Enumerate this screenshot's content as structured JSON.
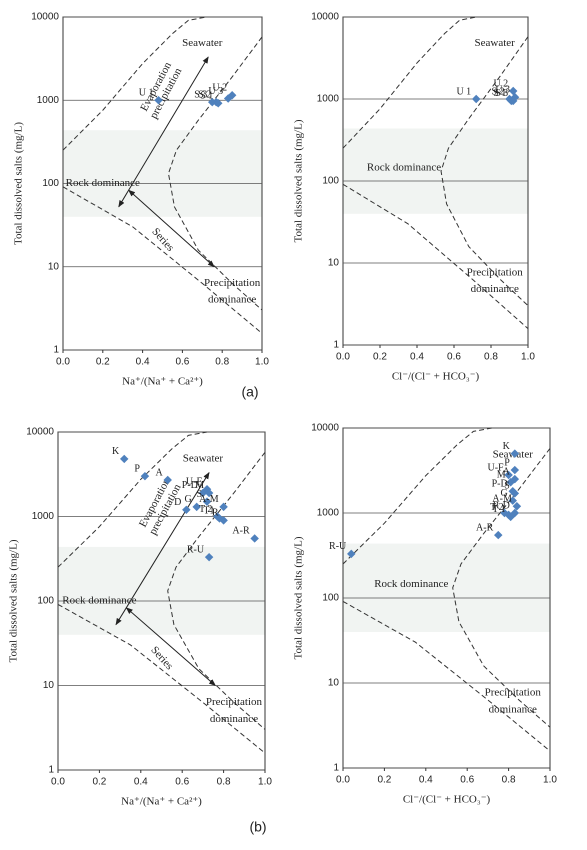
{
  "panel_labels": [
    "(a)",
    "(b)"
  ],
  "chart_data": [
    {
      "type": "scatter",
      "xlabel": "Na⁺/(Na⁺ + Ca²⁺)",
      "ylabel": "Total dissolved salts (mg/L)",
      "log_y": true,
      "grid": true,
      "color": "#4f81bd",
      "xlim": [
        0,
        1
      ],
      "ylim": [
        1,
        10000
      ],
      "xticks": [
        {
          "value": 0,
          "label": "0.0"
        },
        0.2,
        0.4,
        0.6,
        0.8,
        {
          "value": 1,
          "label": "1.0"
        }
      ],
      "yticks": [
        1,
        10,
        100,
        1000,
        10000
      ],
      "annotations": [
        "Seawater",
        "Evaporation",
        "precipitation",
        "Rock dominance",
        "Series",
        "Precipitation",
        "dominance"
      ],
      "labels": [
        "U 1",
        "S 2",
        "S 3",
        "S 1",
        "U 3",
        "U 2"
      ],
      "x": [
        0.48,
        0.77,
        0.75,
        0.78,
        0.83,
        0.85
      ],
      "values": [
        1000,
        950,
        950,
        920,
        1050,
        1150
      ]
    },
    {
      "type": "scatter",
      "xlabel": "Cl⁻/(Cl⁻ + HCO₃⁻)",
      "ylabel": "Total dissolved salts (mg/L)",
      "log_y": true,
      "grid": true,
      "color": "#4f81bd",
      "xlim": [
        0,
        1
      ],
      "ylim": [
        1,
        10000
      ],
      "xticks": [
        {
          "value": 0,
          "label": "0.0"
        },
        0.2,
        0.4,
        0.6,
        0.8,
        {
          "value": 1,
          "label": "1.0"
        }
      ],
      "yticks": [
        1,
        10,
        100,
        1000,
        10000
      ],
      "annotations": [
        "Seawater",
        "Rock dominance",
        "Precipitation",
        "dominance"
      ],
      "labels": [
        "U 1",
        "S 2",
        "U 2",
        "U 3",
        "S 1",
        "S 3"
      ],
      "x": [
        0.72,
        0.9,
        0.92,
        0.93,
        0.91,
        0.92
      ],
      "values": [
        1000,
        1000,
        1250,
        1050,
        950,
        950
      ]
    },
    {
      "type": "scatter",
      "xlabel": "Na⁺/(Na⁺ + Ca²⁺)",
      "ylabel": "Total dissolved salts (mg/L)",
      "log_y": true,
      "grid": true,
      "color": "#4f81bd",
      "xlim": [
        0,
        1
      ],
      "ylim": [
        1,
        10000
      ],
      "xticks": [
        {
          "value": 0,
          "label": "0.0"
        },
        0.2,
        0.4,
        0.6,
        0.8,
        {
          "value": 1,
          "label": "1.0"
        }
      ],
      "yticks": [
        1,
        10,
        100,
        1000,
        10000
      ],
      "annotations": [
        "Seawater",
        "Evaporation",
        "precipitation",
        "Rock dominance",
        "Series",
        "Precipitation",
        "dominance"
      ],
      "labels": [
        "K",
        "P",
        "A",
        "U-F",
        "P-D",
        "M",
        "S",
        "G",
        "D",
        "A-M",
        "T 2",
        "T1",
        "R",
        "A-R",
        "R-U"
      ],
      "x": [
        0.32,
        0.42,
        0.53,
        0.72,
        0.7,
        0.73,
        0.72,
        0.67,
        0.62,
        0.8,
        0.77,
        0.78,
        0.8,
        0.95,
        0.73
      ],
      "values": [
        4800,
        3000,
        2700,
        2100,
        1900,
        1900,
        1500,
        1300,
        1200,
        1300,
        1000,
        950,
        900,
        550,
        330
      ]
    },
    {
      "type": "scatter",
      "xlabel": "Cl⁻/(Cl⁻ + HCO₃⁻)",
      "ylabel": "Total dissolved salts (mg/L)",
      "log_y": true,
      "grid": true,
      "color": "#4f81bd",
      "xlim": [
        0,
        1
      ],
      "ylim": [
        1,
        10000
      ],
      "xticks": [
        {
          "value": 0,
          "label": "0.0"
        },
        0.2,
        0.4,
        0.6,
        0.8,
        {
          "value": 1,
          "label": "1.0"
        }
      ],
      "yticks": [
        1,
        10,
        100,
        1000,
        10000
      ],
      "annotations": [
        "Seawater",
        "Rock dominance",
        "Precipitation",
        "dominance"
      ],
      "labels": [
        "K",
        "P",
        "U-F",
        "A",
        "M",
        "P-D",
        "S",
        "G",
        "A-M",
        "R",
        "T 2",
        "D",
        "T 1",
        "A-R",
        "R-U"
      ],
      "x": [
        0.83,
        0.83,
        0.8,
        0.83,
        0.81,
        0.82,
        0.83,
        0.82,
        0.84,
        0.78,
        0.8,
        0.83,
        0.81,
        0.75,
        0.04
      ],
      "values": [
        5000,
        3200,
        2800,
        2500,
        2300,
        1800,
        1700,
        1400,
        1200,
        1000,
        950,
        1000,
        900,
        550,
        330
      ]
    }
  ]
}
